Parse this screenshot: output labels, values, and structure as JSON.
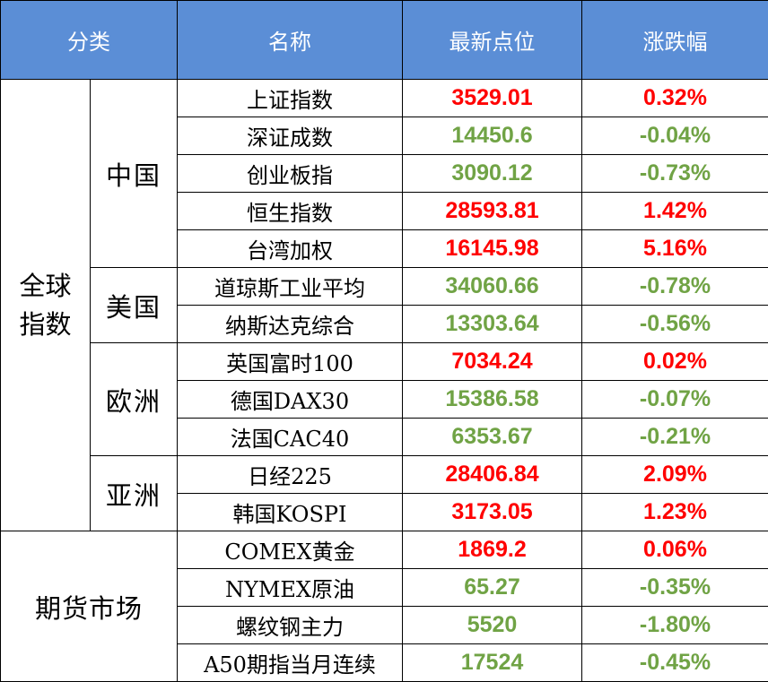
{
  "colors": {
    "header_bg": "#5b8ed6",
    "up": "#ff0000",
    "down": "#70a345"
  },
  "headers": {
    "category": "分类",
    "name": "名称",
    "latest": "最新点位",
    "change": "涨跌幅"
  },
  "groups": {
    "global_line1": "全球",
    "global_line2": "指数",
    "futures": "期货市场"
  },
  "subgroups": {
    "china": "中国",
    "usa": "美国",
    "europe": "欧洲",
    "asia": "亚洲"
  },
  "rows": [
    {
      "name": "上证指数",
      "value": "3529.01",
      "change": "0.32%",
      "trend": "up"
    },
    {
      "name": "深证成数",
      "value": "14450.6",
      "change": "-0.04%",
      "trend": "down"
    },
    {
      "name": "创业板指",
      "value": "3090.12",
      "change": "-0.73%",
      "trend": "down"
    },
    {
      "name": "恒生指数",
      "value": "28593.81",
      "change": "1.42%",
      "trend": "up"
    },
    {
      "name": "台湾加权",
      "value": "16145.98",
      "change": "5.16%",
      "trend": "up"
    },
    {
      "name": "道琼斯工业平均",
      "value": "34060.66",
      "change": "-0.78%",
      "trend": "down"
    },
    {
      "name": "纳斯达克综合",
      "value": "13303.64",
      "change": "-0.56%",
      "trend": "down"
    },
    {
      "name": "英国富时100",
      "value": "7034.24",
      "change": "0.02%",
      "trend": "up"
    },
    {
      "name": "德国DAX30",
      "value": "15386.58",
      "change": "-0.07%",
      "trend": "down"
    },
    {
      "name": "法国CAC40",
      "value": "6353.67",
      "change": "-0.21%",
      "trend": "down"
    },
    {
      "name": "日经225",
      "value": "28406.84",
      "change": "2.09%",
      "trend": "up"
    },
    {
      "name": "韩国KOSPI",
      "value": "3173.05",
      "change": "1.23%",
      "trend": "up"
    },
    {
      "name": "COMEX黄金",
      "value": "1869.2",
      "change": "0.06%",
      "trend": "up"
    },
    {
      "name": "NYMEX原油",
      "value": "65.27",
      "change": "-0.35%",
      "trend": "down"
    },
    {
      "name": "螺纹钢主力",
      "value": "5520",
      "change": "-1.80%",
      "trend": "down"
    },
    {
      "name": "A50期指当月连续",
      "value": "17524",
      "change": "-0.45%",
      "trend": "down"
    }
  ]
}
